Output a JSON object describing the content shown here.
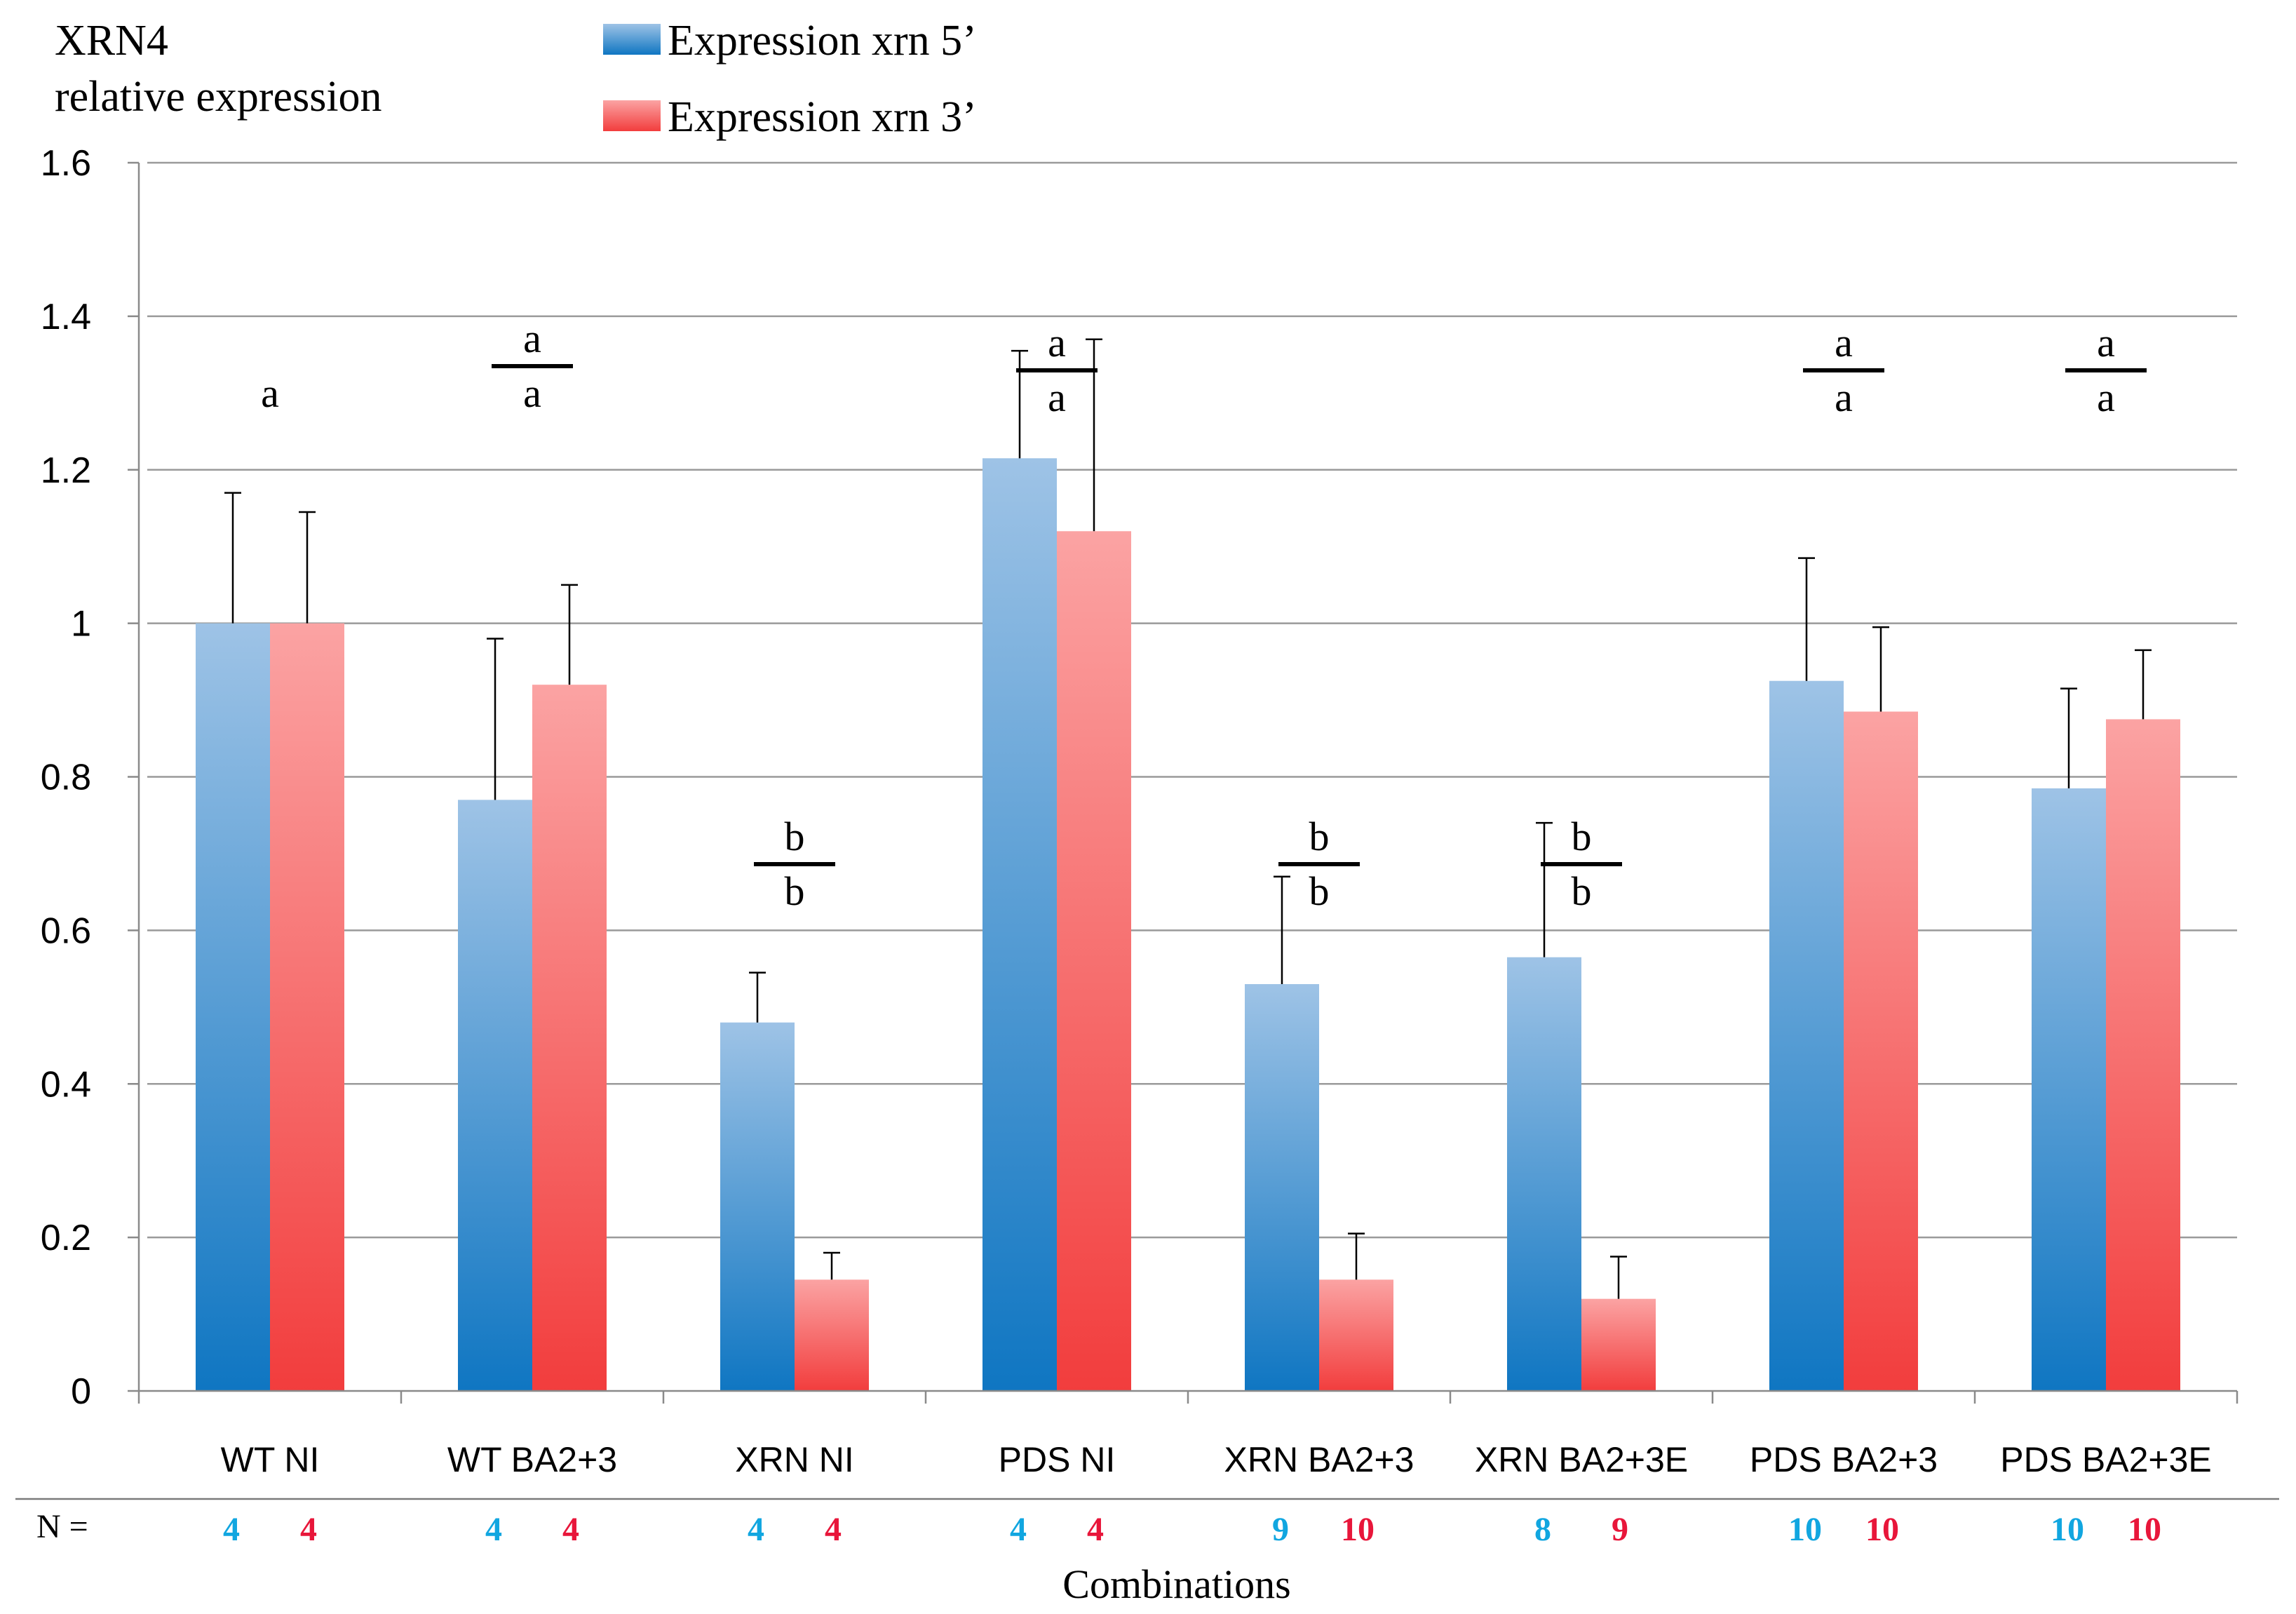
{
  "chart_data": {
    "type": "bar",
    "ylabel_lines": [
      "XRN4",
      "relative expression"
    ],
    "xlabel": "Combinations",
    "ylim": [
      0,
      1.6
    ],
    "yticks": [
      "0",
      "0.2",
      "0.4",
      "0.6",
      "0.8",
      "1",
      "1.2",
      "1.4",
      "1.6"
    ],
    "grid": true,
    "legend_position": "top-center",
    "categories": [
      "WT NI",
      "WT BA2+3",
      "XRN NI",
      "PDS NI",
      "XRN BA2+3",
      "XRN BA2+3E",
      "PDS BA2+3",
      "PDS BA2+3E"
    ],
    "series": [
      {
        "name": "Expression xrn 5’",
        "color": "#2f8bd0",
        "values": [
          1.0,
          0.77,
          0.48,
          1.215,
          0.53,
          0.565,
          0.925,
          0.785
        ],
        "error": [
          0.17,
          0.21,
          0.065,
          0.14,
          0.14,
          0.175,
          0.16,
          0.13
        ],
        "n": [
          "4",
          "4",
          "4",
          "4",
          "9",
          "8",
          "10",
          "10"
        ],
        "n_color": "#11a6e0"
      },
      {
        "name": "Expression xrn 3’",
        "color": "#f05a5a",
        "values": [
          1.0,
          0.92,
          0.145,
          1.12,
          0.145,
          0.12,
          0.885,
          0.875
        ],
        "error": [
          0.145,
          0.13,
          0.035,
          0.25,
          0.06,
          0.055,
          0.11,
          0.09
        ],
        "n": [
          "4",
          "4",
          "4",
          "4",
          "10",
          "9",
          "10",
          "10"
        ],
        "n_color": "#e8163a"
      }
    ],
    "significance": [
      {
        "top": "a",
        "bottom": ""
      },
      {
        "top": "a",
        "bottom": "a"
      },
      {
        "top": "b",
        "bottom": "b"
      },
      {
        "top": "a",
        "bottom": "a"
      },
      {
        "top": "b",
        "bottom": "b"
      },
      {
        "top": "b",
        "bottom": "b"
      },
      {
        "top": "a",
        "bottom": "a"
      },
      {
        "top": "a",
        "bottom": "a"
      }
    ],
    "n_label": "N ="
  }
}
